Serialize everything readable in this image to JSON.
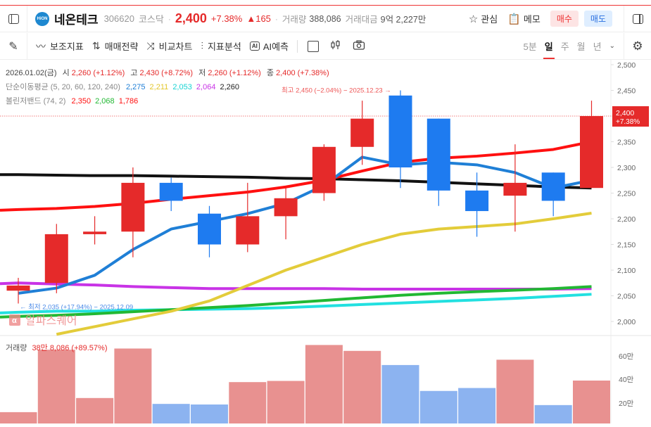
{
  "header": {
    "stock_name": "네온테크",
    "logo_text": "HiON",
    "code": "306620",
    "market": "코스닥",
    "price": "2,400",
    "change_pct": "+7.38%",
    "change_abs": "▲165",
    "volume_label": "거래량",
    "volume_value": "388,086",
    "trade_value_label": "거래대금",
    "trade_value": "9억 2,227만",
    "watch_label": "관심",
    "memo_label": "메모",
    "buy_label": "매수",
    "sell_label": "매도"
  },
  "toolbar": {
    "tools": [
      {
        "label": "보조지표",
        "icon": "indicator-icon"
      },
      {
        "label": "매매전략",
        "icon": "strategy-icon"
      },
      {
        "label": "비교차트",
        "icon": "compare-icon"
      },
      {
        "label": "지표분석",
        "icon": "analysis-icon"
      },
      {
        "label": "AI예측",
        "icon": "ai-icon"
      }
    ],
    "periods": [
      "5분",
      "일",
      "주",
      "월",
      "년"
    ],
    "active_period": "일"
  },
  "legend": {
    "date": "2026.01.02(금)",
    "open_label": "시",
    "open": "2,260 (+1.12%)",
    "high_label": "고",
    "high": "2,430 (+8.72%)",
    "low_label": "저",
    "low": "2,260 (+1.12%)",
    "close_label": "종",
    "close": "2,400 (+7.38%)",
    "ma_label": "단순이동평균",
    "ma_params": "(5, 20, 60, 120, 240)",
    "ma_values": [
      "2,275",
      "2,211",
      "2,053",
      "2,064",
      "2,260"
    ],
    "bb_label": "볼린저밴드",
    "bb_params": "(74, 2)",
    "bb_values": [
      "2,350",
      "2,068",
      "1,786"
    ]
  },
  "annotations": {
    "high_marker": "최고 2,450 (−2.04%) − 2025.12.23 →",
    "low_marker": "← 최저 2,035 (+17.94%) − 2025.12.09",
    "watermark": "알파스퀘어",
    "current_price_tag": "2,400",
    "current_pct_tag": "+7.38%"
  },
  "volume_legend": {
    "label": "거래량",
    "value": "38만 8,086 (+89.57%)"
  },
  "colors": {
    "up": "#e52a2a",
    "down": "#1e7bf0",
    "vol_up": "#e89190",
    "vol_down": "#8cb3f0",
    "ma5": "#1f7fd6",
    "ma20": "#e3cc3a",
    "ma60": "#22e0e0",
    "ma120": "#c833e6",
    "ma240": "#111111",
    "bb_upper": "#ff1010",
    "bb_mid": "#22b833"
  },
  "chart_data": [
    {
      "type": "candlestick",
      "title": "네온테크 306620 일봉",
      "ylim": [
        2000,
        2500
      ],
      "yticks": [
        "2,500",
        "2,450",
        "2,400",
        "2,350",
        "2,300",
        "2,250",
        "2,200",
        "2,150",
        "2,100",
        "2,050",
        "2,000"
      ],
      "candles": [
        {
          "open": 2060,
          "high": 2085,
          "low": 2035,
          "close": 2070,
          "dir": "up"
        },
        {
          "open": 2075,
          "high": 2190,
          "low": 2055,
          "close": 2170,
          "dir": "up"
        },
        {
          "open": 2170,
          "high": 2205,
          "low": 2150,
          "close": 2175,
          "dir": "up"
        },
        {
          "open": 2175,
          "high": 2300,
          "low": 2125,
          "close": 2270,
          "dir": "up"
        },
        {
          "open": 2270,
          "high": 2280,
          "low": 2215,
          "close": 2235,
          "dir": "down"
        },
        {
          "open": 2210,
          "high": 2225,
          "low": 2125,
          "close": 2150,
          "dir": "down"
        },
        {
          "open": 2150,
          "high": 2270,
          "low": 2135,
          "close": 2205,
          "dir": "up"
        },
        {
          "open": 2205,
          "high": 2260,
          "low": 2160,
          "close": 2240,
          "dir": "up"
        },
        {
          "open": 2250,
          "high": 2345,
          "low": 2235,
          "close": 2340,
          "dir": "up"
        },
        {
          "open": 2340,
          "high": 2430,
          "low": 2305,
          "close": 2395,
          "dir": "up"
        },
        {
          "open": 2440,
          "high": 2450,
          "low": 2260,
          "close": 2300,
          "dir": "down"
        },
        {
          "open": 2395,
          "high": 2395,
          "low": 2225,
          "close": 2255,
          "dir": "down"
        },
        {
          "open": 2255,
          "high": 2290,
          "low": 2165,
          "close": 2215,
          "dir": "down"
        },
        {
          "open": 2245,
          "high": 2345,
          "low": 2175,
          "close": 2270,
          "dir": "up"
        },
        {
          "open": 2290,
          "high": 2290,
          "low": 2205,
          "close": 2235,
          "dir": "down"
        },
        {
          "open": 2260,
          "high": 2430,
          "low": 2260,
          "close": 2400,
          "dir": "up"
        }
      ],
      "series": [
        {
          "name": "MA5",
          "values": [
            2055,
            2065,
            2090,
            2140,
            2180,
            2195,
            2210,
            2230,
            2265,
            2320,
            2305,
            2310,
            2305,
            2290,
            2260,
            2275
          ]
        },
        {
          "name": "MA20",
          "values": [
            1960,
            1975,
            1990,
            2005,
            2020,
            2040,
            2070,
            2100,
            2125,
            2150,
            2170,
            2180,
            2185,
            2190,
            2200,
            2211
          ]
        },
        {
          "name": "MA60",
          "values": [
            2018,
            2020,
            2020,
            2022,
            2023,
            2024,
            2025,
            2027,
            2030,
            2033,
            2036,
            2039,
            2042,
            2045,
            2049,
            2053
          ]
        },
        {
          "name": "MA120",
          "values": [
            2075,
            2073,
            2071,
            2068,
            2066,
            2064,
            2064,
            2064,
            2064,
            2063,
            2063,
            2063,
            2063,
            2063,
            2063,
            2064
          ]
        },
        {
          "name": "MA240",
          "values": [
            2286,
            2285,
            2284,
            2284,
            2283,
            2282,
            2281,
            2279,
            2278,
            2276,
            2274,
            2271,
            2268,
            2265,
            2262,
            2260
          ]
        },
        {
          "name": "BB upper",
          "values": [
            2218,
            2220,
            2224,
            2230,
            2238,
            2245,
            2252,
            2262,
            2275,
            2293,
            2310,
            2318,
            2322,
            2328,
            2335,
            2350
          ]
        },
        {
          "name": "BB mid",
          "values": [
            2010,
            2012,
            2015,
            2019,
            2023,
            2027,
            2031,
            2036,
            2041,
            2046,
            2051,
            2055,
            2058,
            2061,
            2064,
            2068
          ]
        }
      ]
    },
    {
      "type": "bar",
      "title": "거래량",
      "yticks": [
        "60만",
        "40만",
        "20만"
      ],
      "values": [
        120000,
        650000,
        240000,
        660000,
        190000,
        185000,
        375000,
        385000,
        690000,
        640000,
        520000,
        300000,
        325000,
        565000,
        180000,
        388086
      ],
      "dirs": [
        "up",
        "up",
        "up",
        "up",
        "down",
        "down",
        "up",
        "up",
        "up",
        "up",
        "down",
        "down",
        "down",
        "up",
        "down",
        "up"
      ]
    }
  ]
}
